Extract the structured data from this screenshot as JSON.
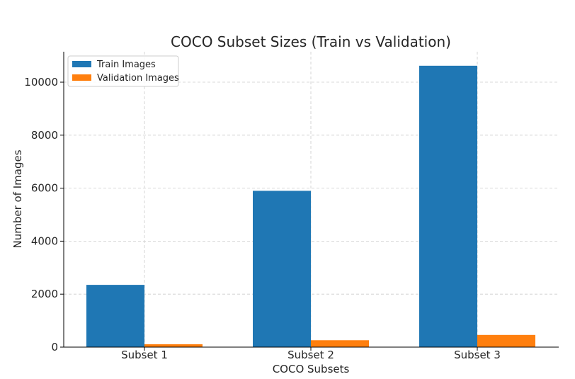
{
  "chart_data": {
    "type": "bar",
    "title": "COCO Subset Sizes (Train vs Validation)",
    "xlabel": "COCO Subsets",
    "ylabel": "Number of Images",
    "categories": [
      "Subset 1",
      "Subset 2",
      "Subset 3"
    ],
    "series": [
      {
        "name": "Train Images",
        "values": [
          2350,
          5900,
          10620
        ],
        "color": "#1f77b4"
      },
      {
        "name": "Validation Images",
        "values": [
          110,
          260,
          460
        ],
        "color": "#ff7f0e"
      }
    ],
    "ylim": [
      0,
      11150
    ],
    "yticks": [
      0,
      2000,
      4000,
      6000,
      8000,
      10000
    ],
    "ytick_labels": [
      "0",
      "2000",
      "4000",
      "6000",
      "8000",
      "10000"
    ],
    "grid": true,
    "legend_position": "top-left"
  }
}
